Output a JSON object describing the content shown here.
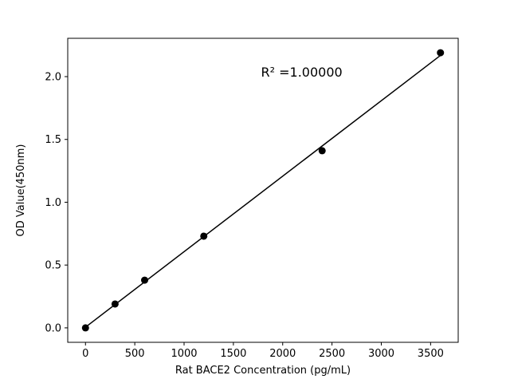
{
  "chart_data": {
    "type": "scatter",
    "title": "",
    "xlabel": "Rat BACE2 Concentration (pg/mL)",
    "ylabel": "OD Value(450nm)",
    "x": [
      0,
      300,
      600,
      1200,
      2400,
      3600
    ],
    "y": [
      0.0,
      0.19,
      0.38,
      0.73,
      1.41,
      2.19
    ],
    "xlim": [
      -180,
      3780
    ],
    "ylim": [
      -0.115,
      2.305
    ],
    "xticks": [
      0,
      500,
      1000,
      1500,
      2000,
      2500,
      3000,
      3500
    ],
    "xtick_labels": [
      "0",
      "500",
      "1000",
      "1500",
      "2000",
      "2500",
      "3000",
      "3500"
    ],
    "yticks": [
      0.0,
      0.5,
      1.0,
      1.5,
      2.0
    ],
    "ytick_labels": [
      "0.0",
      "0.5",
      "1.0",
      "1.5",
      "2.0"
    ],
    "annotation": "R² =1.00000",
    "annotation_x": 1780,
    "annotation_y": 2.0,
    "grid": false,
    "legend": null,
    "marker_color": "#000000",
    "line_color": "#000000",
    "background_color": "#ffffff"
  }
}
